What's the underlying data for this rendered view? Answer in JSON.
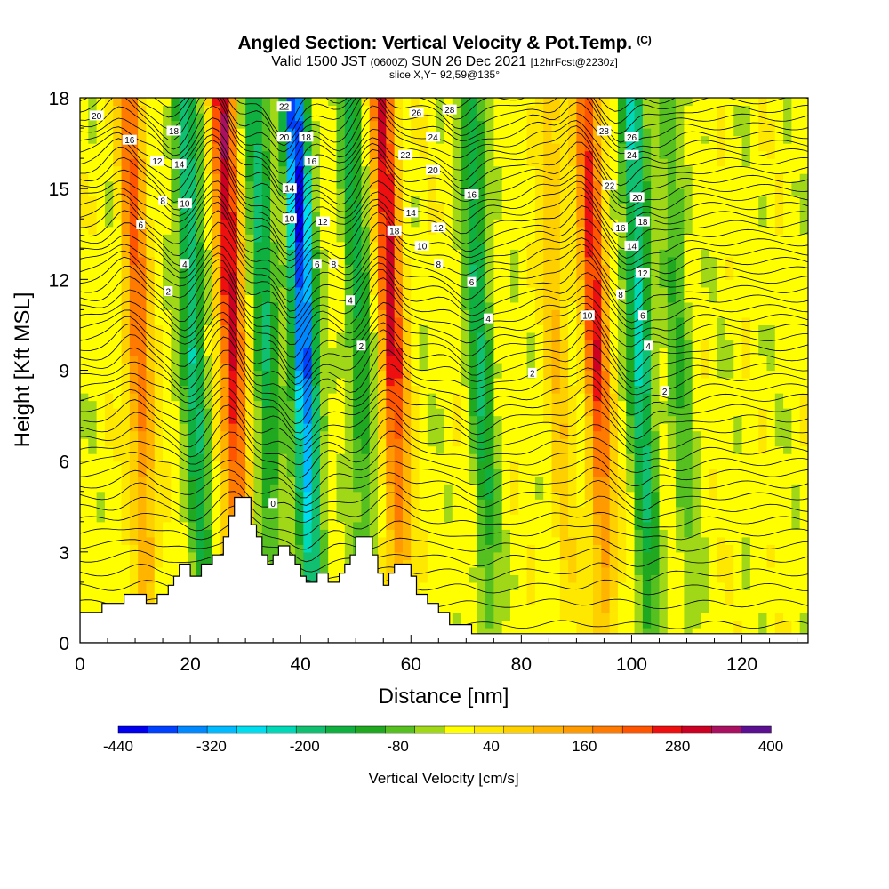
{
  "header": {
    "title": "Angled Section: Vertical Velocity & Pot.Temp.",
    "title_mark": "(C)",
    "valid_prefix": "Valid 1500 JST",
    "valid_utc": "(0600Z)",
    "valid_date": "SUN 26 Dec 2021",
    "forecast": "[12hrFcst@2230z]",
    "slice": "slice X,Y= 92,59@135°"
  },
  "chart_data": {
    "type": "heatmap",
    "title": "Angled Section: Vertical Velocity & Pot.Temp.",
    "xlabel": "Distance [nm]",
    "ylabel": "Height [Kft MSL]",
    "xlim": [
      0,
      132
    ],
    "ylim": [
      0,
      18
    ],
    "x_ticks": [
      0,
      20,
      40,
      60,
      80,
      100,
      120
    ],
    "y_ticks": [
      0,
      3,
      6,
      9,
      12,
      15,
      18
    ],
    "colorbar": {
      "label": "Vertical Velocity [cm/s]",
      "tick_labels": [
        "-440",
        "-320",
        "-200",
        "-80",
        "40",
        "160",
        "280",
        "400"
      ],
      "levels": [
        -440,
        -400,
        -360,
        -320,
        -280,
        -240,
        -200,
        -160,
        -120,
        -80,
        -40,
        0,
        40,
        80,
        120,
        160,
        200,
        240,
        280,
        320,
        360,
        400
      ],
      "colors": [
        "#0000ee",
        "#0040ff",
        "#0088ff",
        "#00bbff",
        "#00ddee",
        "#00d8b8",
        "#10c070",
        "#10b040",
        "#20a820",
        "#55c020",
        "#a0d818",
        "#ffff00",
        "#ffe800",
        "#ffd000",
        "#ffb400",
        "#ff9a00",
        "#ff7a00",
        "#ff5500",
        "#ee1010",
        "#cc0022",
        "#aa1060",
        "#5a1090"
      ]
    },
    "updrafts": [
      {
        "x": 29,
        "amp": 320
      },
      {
        "x": 42,
        "amp": -420
      },
      {
        "x": 58,
        "amp": 300
      },
      {
        "x": 95,
        "amp": 280
      },
      {
        "x": 103,
        "amp": -240
      },
      {
        "x": 22,
        "amp": -220
      },
      {
        "x": 12,
        "amp": 220
      },
      {
        "x": 74,
        "amp": -180
      },
      {
        "x": 52,
        "amp": -150
      },
      {
        "x": 35,
        "amp": -180
      },
      {
        "x": 88,
        "amp": 100
      },
      {
        "x": 110,
        "amp": -100
      }
    ],
    "terrain": [
      [
        0,
        1
      ],
      [
        4,
        1
      ],
      [
        4,
        1.3
      ],
      [
        8,
        1.3
      ],
      [
        8,
        1.6
      ],
      [
        12,
        1.6
      ],
      [
        12,
        1.3
      ],
      [
        14,
        1.3
      ],
      [
        14,
        1.6
      ],
      [
        16,
        1.6
      ],
      [
        16,
        1.9
      ],
      [
        17,
        1.9
      ],
      [
        17,
        2.2
      ],
      [
        18,
        2.2
      ],
      [
        18,
        2.6
      ],
      [
        20,
        2.6
      ],
      [
        20,
        2.2
      ],
      [
        22,
        2.2
      ],
      [
        22,
        2.6
      ],
      [
        24,
        2.6
      ],
      [
        24,
        2.9
      ],
      [
        26,
        2.9
      ],
      [
        26,
        3.5
      ],
      [
        27,
        3.5
      ],
      [
        27,
        4.2
      ],
      [
        28,
        4.2
      ],
      [
        28,
        4.8
      ],
      [
        31,
        4.8
      ],
      [
        31,
        3.9
      ],
      [
        32,
        3.9
      ],
      [
        32,
        3.5
      ],
      [
        33,
        3.5
      ],
      [
        33,
        2.9
      ],
      [
        34,
        2.9
      ],
      [
        34,
        2.6
      ],
      [
        35,
        2.6
      ],
      [
        35,
        2.9
      ],
      [
        36,
        2.9
      ],
      [
        36,
        3.2
      ],
      [
        38,
        3.2
      ],
      [
        38,
        2.9
      ],
      [
        39,
        2.9
      ],
      [
        39,
        2.6
      ],
      [
        40,
        2.6
      ],
      [
        40,
        2.2
      ],
      [
        41,
        2.2
      ],
      [
        41,
        2
      ],
      [
        43,
        2
      ],
      [
        43,
        2.3
      ],
      [
        45,
        2.3
      ],
      [
        45,
        2
      ],
      [
        47,
        2
      ],
      [
        47,
        2.3
      ],
      [
        48,
        2.3
      ],
      [
        48,
        2.6
      ],
      [
        49,
        2.6
      ],
      [
        49,
        2.9
      ],
      [
        50,
        2.9
      ],
      [
        50,
        3.5
      ],
      [
        53,
        3.5
      ],
      [
        53,
        2.9
      ],
      [
        54,
        2.9
      ],
      [
        54,
        2.3
      ],
      [
        55,
        2.3
      ],
      [
        55,
        1.9
      ],
      [
        56,
        1.9
      ],
      [
        56,
        2.3
      ],
      [
        57,
        2.3
      ],
      [
        57,
        2.6
      ],
      [
        60,
        2.6
      ],
      [
        60,
        2.2
      ],
      [
        61,
        2.2
      ],
      [
        61,
        1.6
      ],
      [
        63,
        1.6
      ],
      [
        63,
        1.3
      ],
      [
        65,
        1.3
      ],
      [
        65,
        1
      ],
      [
        67,
        1
      ],
      [
        67,
        0.6
      ],
      [
        71,
        0.6
      ],
      [
        71,
        0.3
      ],
      [
        132,
        0.3
      ],
      [
        132,
        0
      ],
      [
        0,
        0
      ]
    ],
    "theta_labels": [
      {
        "x": 3,
        "y": 17.4,
        "t": "20"
      },
      {
        "x": 9,
        "y": 16.6,
        "t": "16"
      },
      {
        "x": 17,
        "y": 16.9,
        "t": "18"
      },
      {
        "x": 14,
        "y": 15.9,
        "t": "12"
      },
      {
        "x": 18,
        "y": 15.8,
        "t": "14"
      },
      {
        "x": 15,
        "y": 14.6,
        "t": "8"
      },
      {
        "x": 19,
        "y": 14.5,
        "t": "10"
      },
      {
        "x": 11,
        "y": 13.8,
        "t": "6"
      },
      {
        "x": 19,
        "y": 12.5,
        "t": "4"
      },
      {
        "x": 16,
        "y": 11.6,
        "t": "2"
      },
      {
        "x": 37,
        "y": 17.7,
        "t": "22"
      },
      {
        "x": 37,
        "y": 16.7,
        "t": "20"
      },
      {
        "x": 41,
        "y": 16.7,
        "t": "18"
      },
      {
        "x": 42,
        "y": 15.9,
        "t": "16"
      },
      {
        "x": 38,
        "y": 15,
        "t": "14"
      },
      {
        "x": 38,
        "y": 14,
        "t": "10"
      },
      {
        "x": 44,
        "y": 13.9,
        "t": "12"
      },
      {
        "x": 43,
        "y": 12.5,
        "t": "6"
      },
      {
        "x": 46,
        "y": 12.5,
        "t": "8"
      },
      {
        "x": 49,
        "y": 11.3,
        "t": "4"
      },
      {
        "x": 51,
        "y": 9.8,
        "t": "2"
      },
      {
        "x": 61,
        "y": 17.5,
        "t": "26"
      },
      {
        "x": 67,
        "y": 17.6,
        "t": "28"
      },
      {
        "x": 59,
        "y": 16.1,
        "t": "22"
      },
      {
        "x": 64,
        "y": 16.7,
        "t": "24"
      },
      {
        "x": 64,
        "y": 15.6,
        "t": "20"
      },
      {
        "x": 71,
        "y": 14.8,
        "t": "16"
      },
      {
        "x": 60,
        "y": 14.2,
        "t": "14"
      },
      {
        "x": 65,
        "y": 13.7,
        "t": "12"
      },
      {
        "x": 57,
        "y": 13.6,
        "t": "18"
      },
      {
        "x": 62,
        "y": 13.1,
        "t": "10"
      },
      {
        "x": 65,
        "y": 12.5,
        "t": "8"
      },
      {
        "x": 71,
        "y": 11.9,
        "t": "6"
      },
      {
        "x": 74,
        "y": 10.7,
        "t": "4"
      },
      {
        "x": 82,
        "y": 8.9,
        "t": "2"
      },
      {
        "x": 95,
        "y": 16.9,
        "t": "28"
      },
      {
        "x": 100,
        "y": 16.7,
        "t": "26"
      },
      {
        "x": 100,
        "y": 16.1,
        "t": "24"
      },
      {
        "x": 96,
        "y": 15.1,
        "t": "22"
      },
      {
        "x": 101,
        "y": 14.7,
        "t": "20"
      },
      {
        "x": 102,
        "y": 13.9,
        "t": "18"
      },
      {
        "x": 98,
        "y": 13.7,
        "t": "16"
      },
      {
        "x": 100,
        "y": 13.1,
        "t": "14"
      },
      {
        "x": 102,
        "y": 12.2,
        "t": "12"
      },
      {
        "x": 98,
        "y": 11.5,
        "t": "8"
      },
      {
        "x": 92,
        "y": 10.8,
        "t": "10"
      },
      {
        "x": 102,
        "y": 10.8,
        "t": "6"
      },
      {
        "x": 103,
        "y": 9.8,
        "t": "4"
      },
      {
        "x": 106,
        "y": 8.3,
        "t": "2"
      },
      {
        "x": 35,
        "y": 4.6,
        "t": "0"
      }
    ]
  }
}
